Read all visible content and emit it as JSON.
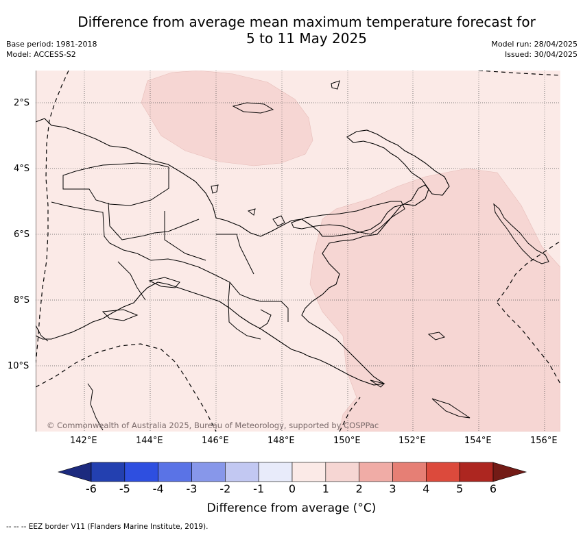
{
  "header": {
    "title_line1": "Difference from average mean maximum temperature forecast for",
    "title_line2": "5 to 11 May 2025",
    "base_period": "Base period: 1981-2018",
    "model": "Model: ACCESS-S2",
    "model_run": "Model run: 28/04/2025",
    "issued": "Issued: 30/04/2025"
  },
  "map": {
    "region": "Papua New Guinea",
    "lat_labels": [
      "2°S",
      "4°S",
      "6°S",
      "8°S",
      "10°S"
    ],
    "lon_labels": [
      "142°E",
      "144°E",
      "146°E",
      "148°E",
      "150°E",
      "152°E",
      "154°E",
      "156°E"
    ],
    "colors": {
      "anomaly_0_to_1": "#fbeae7",
      "anomaly_1_to_2": "#f6d6d3",
      "coastline": "#000000",
      "gridline": "#555555"
    },
    "shaded_regions": [
      {
        "description": "0 to 1 °C above average",
        "level": "0-1"
      },
      {
        "description": "1 to 2 °C above average",
        "level": "1-2"
      }
    ],
    "copyright": "© Commonwealth of Australia 2025, Bureau of Meteorology, supported by COSPPac"
  },
  "colorbar": {
    "ticks": [
      "-6",
      "-5",
      "-4",
      "-3",
      "-2",
      "-1",
      "0",
      "1",
      "2",
      "3",
      "4",
      "5",
      "6"
    ],
    "colors": [
      "#1c2a7e",
      "#2340b0",
      "#2e4fe0",
      "#5a73e6",
      "#8797ea",
      "#c2c8f2",
      "#e8ebfa",
      "#fbeae7",
      "#f6d6d3",
      "#f0aca6",
      "#e67f75",
      "#dc4a3c",
      "#ad2620",
      "#731b16"
    ],
    "label": "Difference from average (",
    "label_unit": "°C)"
  },
  "legend": {
    "eez_text": "--  --  -- EEZ border V11 (Flanders Marine Institute, 2019)."
  }
}
